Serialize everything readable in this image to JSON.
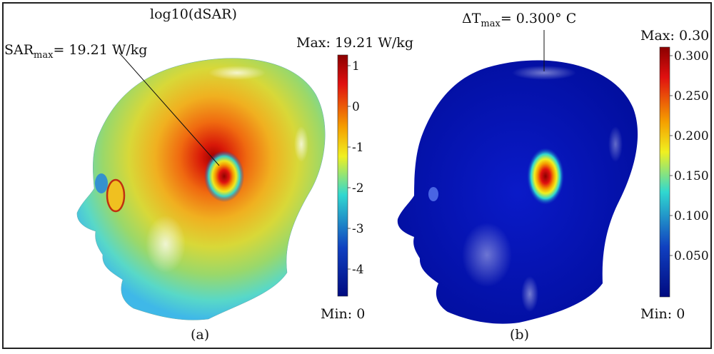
{
  "panel_a": {
    "title": "log10(dSAR)",
    "annotation_main": "SAR",
    "annotation_sub": "max",
    "annotation_value": "= 19.21 W/kg",
    "colorbar_max_label": "Max: 19.21 W/kg",
    "colorbar_min_label": "Min: 0",
    "ticks": [
      "1",
      "0",
      "-1",
      "-2",
      "-3",
      "-4"
    ],
    "caption": "(a)"
  },
  "panel_b": {
    "annotation_main": "ΔT",
    "annotation_sub": "max",
    "annotation_value": "= 0.300° C",
    "colorbar_max_label": "Max: 0.30",
    "colorbar_min_label": "Min: 0",
    "ticks": [
      "0.300",
      "0.250",
      "0.200",
      "0.150",
      "0.100",
      "0.050"
    ],
    "caption": "(b)"
  },
  "colors": {
    "dark_red": "#8b0000",
    "red": "#e02010",
    "orange": "#f5a000",
    "yellow": "#f0f020",
    "cyan": "#30d8d0",
    "blue": "#1040c0",
    "navy": "#000a80"
  }
}
